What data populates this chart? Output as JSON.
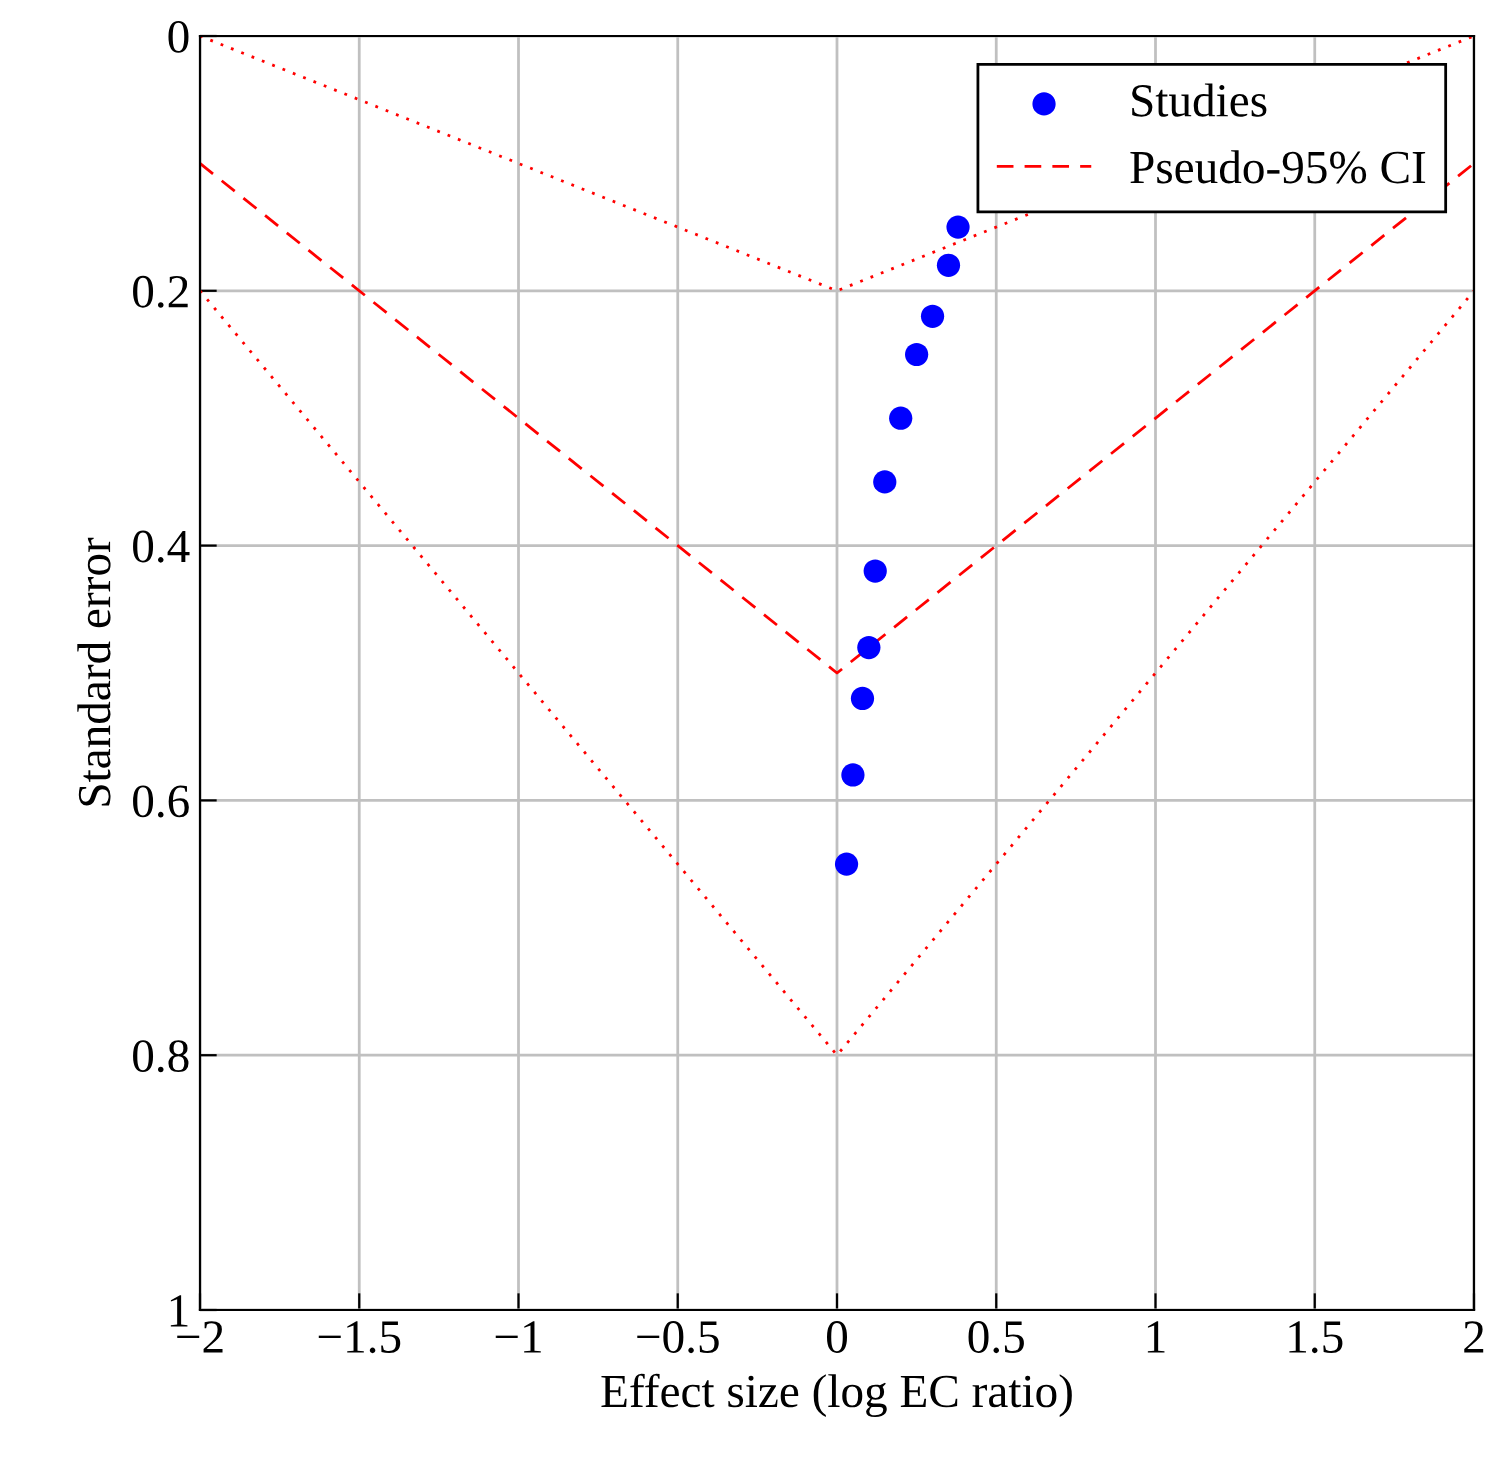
{
  "chart_data": {
    "type": "scatter",
    "xlabel": "Effect size (log EC ratio)",
    "ylabel": "Standard error",
    "xlim": [
      -2,
      2
    ],
    "ylim": [
      1,
      0
    ],
    "xticks": [
      {
        "value": -2,
        "label": "−2"
      },
      {
        "value": -1.5,
        "label": "−1.5"
      },
      {
        "value": -1,
        "label": "−1"
      },
      {
        "value": -0.5,
        "label": "−0.5"
      },
      0,
      0.5,
      1,
      1.5,
      2
    ],
    "yticks": [
      0,
      0.2,
      0.4,
      0.6,
      0.8,
      1
    ],
    "grid": true,
    "legend": "top right",
    "series": [
      {
        "name": "Studies",
        "color": "#0000ff",
        "marker": "circle",
        "x": [
          0.38,
          0.35,
          0.3,
          0.25,
          0.2,
          0.15,
          0.12,
          0.1,
          0.08,
          0.05,
          0.03
        ],
        "values": [
          0.15,
          0.18,
          0.22,
          0.25,
          0.3,
          0.35,
          0.42,
          0.48,
          0.52,
          0.58,
          0.65
        ]
      },
      {
        "name": "Pseudo-95% CI",
        "type": "line",
        "color": "#ff0000",
        "line_style": "dashed",
        "x": [
          -2,
          0,
          2
        ],
        "values": [
          0.1,
          0.5,
          0.1
        ]
      },
      {
        "type": "line",
        "color": "#ff0000",
        "line_style": "dotted",
        "x": [
          -2,
          0,
          2
        ],
        "values": [
          0,
          0.2,
          0
        ]
      },
      {
        "type": "line",
        "color": "#ff0000",
        "line_style": "dotted",
        "x": [
          -2,
          0,
          2
        ],
        "values": [
          0.2,
          0.8,
          0.2
        ]
      }
    ]
  }
}
